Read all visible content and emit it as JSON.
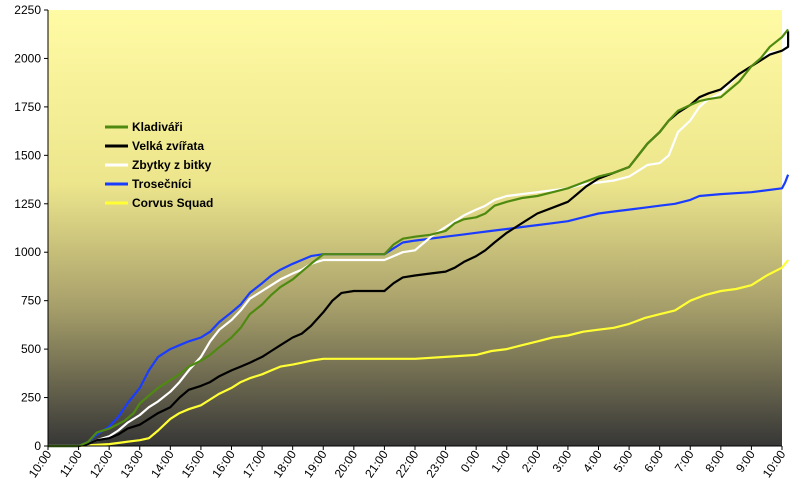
{
  "chart_data": {
    "type": "line",
    "title": "",
    "xlabel": "",
    "ylabel": "",
    "ylim": [
      0,
      2250
    ],
    "grid": false,
    "legend_placement": "left",
    "y_ticks": [
      0,
      250,
      500,
      750,
      1000,
      1250,
      1500,
      1750,
      2000,
      2250
    ],
    "x_ticks": [
      "10:00",
      "11:00",
      "12:00",
      "13:00",
      "14:00",
      "15:00",
      "16:00",
      "17:00",
      "18:00",
      "19:00",
      "20:00",
      "21:00",
      "22:00",
      "23:00",
      "0:00",
      "1:00",
      "2:00",
      "3:00",
      "4:00",
      "5:00",
      "6:00",
      "7:00",
      "8:00",
      "9:00",
      "10:00"
    ],
    "x_unit": "hours since 10:00 (tick index)",
    "series": [
      {
        "name": "Kladiváři",
        "color": "#4f8a10",
        "points": [
          [
            0,
            0
          ],
          [
            1,
            0
          ],
          [
            1.3,
            20
          ],
          [
            1.6,
            70
          ],
          [
            2,
            90
          ],
          [
            2.5,
            130
          ],
          [
            2.8,
            170
          ],
          [
            3,
            220
          ],
          [
            3.3,
            260
          ],
          [
            3.6,
            300
          ],
          [
            4,
            340
          ],
          [
            4.3,
            370
          ],
          [
            4.6,
            410
          ],
          [
            5,
            440
          ],
          [
            5.3,
            470
          ],
          [
            5.6,
            510
          ],
          [
            6,
            560
          ],
          [
            6.3,
            610
          ],
          [
            6.6,
            680
          ],
          [
            7,
            730
          ],
          [
            7.3,
            780
          ],
          [
            7.6,
            820
          ],
          [
            8,
            860
          ],
          [
            8.3,
            900
          ],
          [
            8.6,
            940
          ],
          [
            9,
            990
          ],
          [
            10,
            990
          ],
          [
            11,
            990
          ],
          [
            11.3,
            1040
          ],
          [
            11.6,
            1070
          ],
          [
            12,
            1080
          ],
          [
            12.5,
            1090
          ],
          [
            13,
            1110
          ],
          [
            13.3,
            1150
          ],
          [
            13.6,
            1170
          ],
          [
            14,
            1180
          ],
          [
            14.3,
            1200
          ],
          [
            14.6,
            1240
          ],
          [
            15,
            1260
          ],
          [
            15.5,
            1280
          ],
          [
            16,
            1290
          ],
          [
            16.5,
            1310
          ],
          [
            17,
            1330
          ],
          [
            17.5,
            1360
          ],
          [
            18,
            1390
          ],
          [
            18.5,
            1410
          ],
          [
            19,
            1440
          ],
          [
            19.3,
            1500
          ],
          [
            19.6,
            1560
          ],
          [
            20,
            1620
          ],
          [
            20.3,
            1680
          ],
          [
            20.6,
            1730
          ],
          [
            21,
            1760
          ],
          [
            21.3,
            1780
          ],
          [
            21.6,
            1790
          ],
          [
            22,
            1800
          ],
          [
            22.3,
            1840
          ],
          [
            22.6,
            1880
          ],
          [
            23,
            1960
          ],
          [
            23.3,
            2000
          ],
          [
            23.6,
            2060
          ],
          [
            24,
            2110
          ],
          [
            24.2,
            2150
          ]
        ]
      },
      {
        "name": "Velká zvířata",
        "color": "#000000",
        "points": [
          [
            0,
            0
          ],
          [
            1,
            0
          ],
          [
            1.3,
            10
          ],
          [
            1.6,
            30
          ],
          [
            2,
            40
          ],
          [
            2.3,
            60
          ],
          [
            2.6,
            90
          ],
          [
            3,
            110
          ],
          [
            3.3,
            140
          ],
          [
            3.6,
            170
          ],
          [
            4,
            200
          ],
          [
            4.3,
            250
          ],
          [
            4.6,
            290
          ],
          [
            5,
            310
          ],
          [
            5.3,
            330
          ],
          [
            5.6,
            360
          ],
          [
            6,
            390
          ],
          [
            6.3,
            410
          ],
          [
            6.6,
            430
          ],
          [
            7,
            460
          ],
          [
            7.3,
            490
          ],
          [
            7.6,
            520
          ],
          [
            8,
            560
          ],
          [
            8.3,
            580
          ],
          [
            8.6,
            620
          ],
          [
            9,
            690
          ],
          [
            9.3,
            750
          ],
          [
            9.6,
            790
          ],
          [
            10,
            800
          ],
          [
            11,
            800
          ],
          [
            11.3,
            840
          ],
          [
            11.6,
            870
          ],
          [
            12,
            880
          ],
          [
            12.5,
            890
          ],
          [
            13,
            900
          ],
          [
            13.3,
            920
          ],
          [
            13.6,
            950
          ],
          [
            14,
            980
          ],
          [
            14.3,
            1010
          ],
          [
            14.6,
            1050
          ],
          [
            15,
            1100
          ],
          [
            15.3,
            1130
          ],
          [
            15.6,
            1160
          ],
          [
            16,
            1200
          ],
          [
            16.5,
            1230
          ],
          [
            17,
            1260
          ],
          [
            17.3,
            1300
          ],
          [
            17.6,
            1340
          ],
          [
            18,
            1380
          ],
          [
            18.5,
            1410
          ],
          [
            19,
            1440
          ],
          [
            19.3,
            1500
          ],
          [
            19.6,
            1560
          ],
          [
            20,
            1620
          ],
          [
            20.3,
            1680
          ],
          [
            20.6,
            1720
          ],
          [
            21,
            1760
          ],
          [
            21.3,
            1800
          ],
          [
            21.6,
            1820
          ],
          [
            22,
            1840
          ],
          [
            22.3,
            1880
          ],
          [
            22.6,
            1920
          ],
          [
            23,
            1960
          ],
          [
            23.3,
            1990
          ],
          [
            23.6,
            2020
          ],
          [
            24,
            2040
          ],
          [
            24.2,
            2060
          ],
          [
            24.2,
            2140
          ]
        ]
      },
      {
        "name": "Zbytky z bitky",
        "color": "#ffffff",
        "points": [
          [
            0,
            0
          ],
          [
            1,
            0
          ],
          [
            1.3,
            10
          ],
          [
            1.6,
            30
          ],
          [
            2,
            50
          ],
          [
            2.3,
            80
          ],
          [
            2.6,
            120
          ],
          [
            3,
            160
          ],
          [
            3.3,
            200
          ],
          [
            3.6,
            230
          ],
          [
            4,
            280
          ],
          [
            4.3,
            330
          ],
          [
            4.6,
            390
          ],
          [
            5,
            460
          ],
          [
            5.3,
            540
          ],
          [
            5.6,
            600
          ],
          [
            6,
            650
          ],
          [
            6.3,
            700
          ],
          [
            6.6,
            760
          ],
          [
            7,
            800
          ],
          [
            7.3,
            830
          ],
          [
            7.6,
            860
          ],
          [
            8,
            890
          ],
          [
            8.3,
            910
          ],
          [
            8.6,
            940
          ],
          [
            9,
            960
          ],
          [
            10,
            960
          ],
          [
            11,
            960
          ],
          [
            11.3,
            980
          ],
          [
            11.6,
            1000
          ],
          [
            12,
            1010
          ],
          [
            12.3,
            1050
          ],
          [
            12.6,
            1090
          ],
          [
            13,
            1130
          ],
          [
            13.3,
            1160
          ],
          [
            13.6,
            1190
          ],
          [
            14,
            1220
          ],
          [
            14.3,
            1240
          ],
          [
            14.6,
            1270
          ],
          [
            15,
            1290
          ],
          [
            15.5,
            1300
          ],
          [
            16,
            1310
          ],
          [
            16.5,
            1320
          ],
          [
            17,
            1330
          ],
          [
            17.5,
            1350
          ],
          [
            18,
            1360
          ],
          [
            18.5,
            1370
          ],
          [
            19,
            1390
          ],
          [
            19.3,
            1420
          ],
          [
            19.6,
            1450
          ],
          [
            20,
            1460
          ],
          [
            20.3,
            1500
          ],
          [
            20.6,
            1620
          ],
          [
            21,
            1680
          ],
          [
            21.3,
            1750
          ],
          [
            21.6,
            1790
          ],
          [
            22,
            1820
          ],
          [
            22.3,
            1870
          ],
          [
            22.6,
            1920
          ],
          [
            23,
            1960
          ],
          [
            23.3,
            2000
          ],
          [
            23.6,
            2030
          ],
          [
            24,
            2040
          ],
          [
            24.2,
            2050
          ]
        ]
      },
      {
        "name": "Trosečníci",
        "color": "#1a3cff",
        "points": [
          [
            0,
            0
          ],
          [
            1,
            0
          ],
          [
            1.3,
            20
          ],
          [
            1.6,
            60
          ],
          [
            2,
            100
          ],
          [
            2.3,
            150
          ],
          [
            2.6,
            220
          ],
          [
            3,
            300
          ],
          [
            3.3,
            390
          ],
          [
            3.6,
            460
          ],
          [
            4,
            500
          ],
          [
            4.3,
            520
          ],
          [
            4.6,
            540
          ],
          [
            5,
            560
          ],
          [
            5.3,
            590
          ],
          [
            5.6,
            640
          ],
          [
            6,
            690
          ],
          [
            6.3,
            730
          ],
          [
            6.6,
            790
          ],
          [
            7,
            840
          ],
          [
            7.3,
            880
          ],
          [
            7.6,
            910
          ],
          [
            8,
            940
          ],
          [
            8.3,
            960
          ],
          [
            8.6,
            980
          ],
          [
            9,
            990
          ],
          [
            10,
            990
          ],
          [
            11,
            990
          ],
          [
            11.3,
            1020
          ],
          [
            11.6,
            1050
          ],
          [
            12,
            1060
          ],
          [
            12.5,
            1070
          ],
          [
            13,
            1080
          ],
          [
            13.5,
            1090
          ],
          [
            14,
            1100
          ],
          [
            14.5,
            1110
          ],
          [
            15,
            1120
          ],
          [
            15.5,
            1130
          ],
          [
            16,
            1140
          ],
          [
            16.5,
            1150
          ],
          [
            17,
            1160
          ],
          [
            17.5,
            1180
          ],
          [
            18,
            1200
          ],
          [
            18.5,
            1210
          ],
          [
            19,
            1220
          ],
          [
            19.5,
            1230
          ],
          [
            20,
            1240
          ],
          [
            20.5,
            1250
          ],
          [
            21,
            1270
          ],
          [
            21.3,
            1290
          ],
          [
            22,
            1300
          ],
          [
            23,
            1310
          ],
          [
            24,
            1330
          ],
          [
            24.1,
            1360
          ],
          [
            24.2,
            1400
          ]
        ]
      },
      {
        "name": "Corvus Squad",
        "color": "#ffff33",
        "points": [
          [
            0,
            0
          ],
          [
            1,
            0
          ],
          [
            1.5,
            5
          ],
          [
            2,
            10
          ],
          [
            2.5,
            20
          ],
          [
            3,
            30
          ],
          [
            3.3,
            40
          ],
          [
            3.6,
            80
          ],
          [
            4,
            140
          ],
          [
            4.3,
            170
          ],
          [
            4.6,
            190
          ],
          [
            5,
            210
          ],
          [
            5.3,
            240
          ],
          [
            5.6,
            270
          ],
          [
            6,
            300
          ],
          [
            6.3,
            330
          ],
          [
            6.6,
            350
          ],
          [
            7,
            370
          ],
          [
            7.3,
            390
          ],
          [
            7.6,
            410
          ],
          [
            8,
            420
          ],
          [
            8.3,
            430
          ],
          [
            8.6,
            440
          ],
          [
            9,
            450
          ],
          [
            10,
            450
          ],
          [
            11,
            450
          ],
          [
            12,
            450
          ],
          [
            13,
            460
          ],
          [
            14,
            470
          ],
          [
            14.5,
            490
          ],
          [
            15,
            500
          ],
          [
            15.5,
            520
          ],
          [
            16,
            540
          ],
          [
            16.5,
            560
          ],
          [
            17,
            570
          ],
          [
            17.5,
            590
          ],
          [
            18,
            600
          ],
          [
            18.5,
            610
          ],
          [
            19,
            630
          ],
          [
            19.5,
            660
          ],
          [
            20,
            680
          ],
          [
            20.5,
            700
          ],
          [
            21,
            750
          ],
          [
            21.5,
            780
          ],
          [
            22,
            800
          ],
          [
            22.5,
            810
          ],
          [
            23,
            830
          ],
          [
            23.5,
            880
          ],
          [
            24,
            920
          ],
          [
            24.2,
            960
          ]
        ]
      }
    ]
  }
}
